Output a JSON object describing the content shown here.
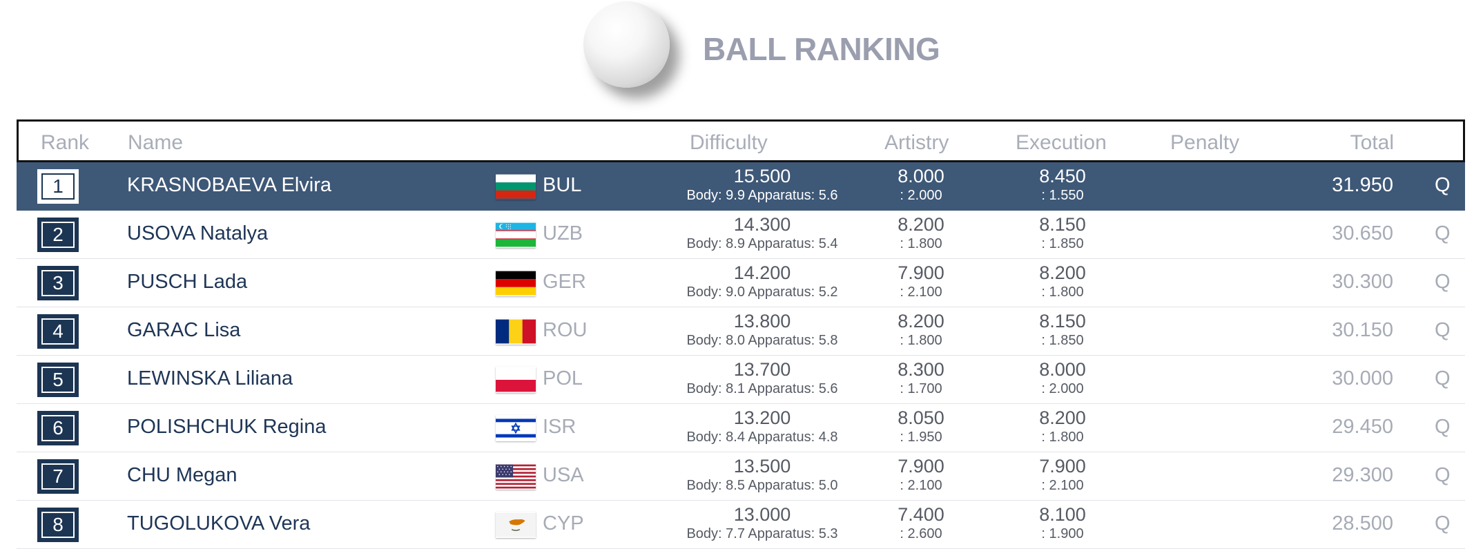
{
  "title": "BALL RANKING",
  "headers": {
    "rank": "Rank",
    "name": "Name",
    "difficulty": "Difficulty",
    "artistry": "Artistry",
    "execution": "Execution",
    "penalty": "Penalty",
    "total": "Total"
  },
  "rows": [
    {
      "rank": "1",
      "name": "KRASNOBAEVA Elvira",
      "country": "BUL",
      "flag": "bul-flag-icon",
      "difficulty": "15.500",
      "difficulty_sub": "Body: 9.9 Apparatus: 5.6",
      "artistry": "8.000",
      "artistry_sub": ": 2.000",
      "execution": "8.450",
      "execution_sub": ": 1.550",
      "total": "31.950",
      "q": "Q"
    },
    {
      "rank": "2",
      "name": "USOVA Natalya",
      "country": "UZB",
      "flag": "uzb-flag-icon",
      "difficulty": "14.300",
      "difficulty_sub": "Body: 8.9 Apparatus: 5.4",
      "artistry": "8.200",
      "artistry_sub": ": 1.800",
      "execution": "8.150",
      "execution_sub": ": 1.850",
      "total": "30.650",
      "q": "Q"
    },
    {
      "rank": "3",
      "name": "PUSCH Lada",
      "country": "GER",
      "flag": "ger-flag-icon",
      "difficulty": "14.200",
      "difficulty_sub": "Body: 9.0 Apparatus: 5.2",
      "artistry": "7.900",
      "artistry_sub": ": 2.100",
      "execution": "8.200",
      "execution_sub": ": 1.800",
      "total": "30.300",
      "q": "Q"
    },
    {
      "rank": "4",
      "name": "GARAC Lisa",
      "country": "ROU",
      "flag": "rou-flag-icon",
      "difficulty": "13.800",
      "difficulty_sub": "Body: 8.0 Apparatus: 5.8",
      "artistry": "8.200",
      "artistry_sub": ": 1.800",
      "execution": "8.150",
      "execution_sub": ": 1.850",
      "total": "30.150",
      "q": "Q"
    },
    {
      "rank": "5",
      "name": "LEWINSKA Liliana",
      "country": "POL",
      "flag": "pol-flag-icon",
      "difficulty": "13.700",
      "difficulty_sub": "Body: 8.1 Apparatus: 5.6",
      "artistry": "8.300",
      "artistry_sub": ": 1.700",
      "execution": "8.000",
      "execution_sub": ": 2.000",
      "total": "30.000",
      "q": "Q"
    },
    {
      "rank": "6",
      "name": "POLISHCHUK Regina",
      "country": "ISR",
      "flag": "isr-flag-icon",
      "difficulty": "13.200",
      "difficulty_sub": "Body: 8.4 Apparatus: 4.8",
      "artistry": "8.050",
      "artistry_sub": ": 1.950",
      "execution": "8.200",
      "execution_sub": ": 1.800",
      "total": "29.450",
      "q": "Q"
    },
    {
      "rank": "7",
      "name": "CHU Megan",
      "country": "USA",
      "flag": "usa-flag-icon",
      "difficulty": "13.500",
      "difficulty_sub": "Body: 8.5 Apparatus: 5.0",
      "artistry": "7.900",
      "artistry_sub": ": 2.100",
      "execution": "7.900",
      "execution_sub": ": 2.100",
      "total": "29.300",
      "q": "Q"
    },
    {
      "rank": "8",
      "name": "TUGOLUKOVA Vera",
      "country": "CYP",
      "flag": "cyp-flag-icon",
      "difficulty": "13.000",
      "difficulty_sub": "Body: 7.7 Apparatus: 5.3",
      "artistry": "7.400",
      "artistry_sub": ": 2.600",
      "execution": "8.100",
      "execution_sub": ": 1.900",
      "total": "28.500",
      "q": "Q"
    }
  ]
}
